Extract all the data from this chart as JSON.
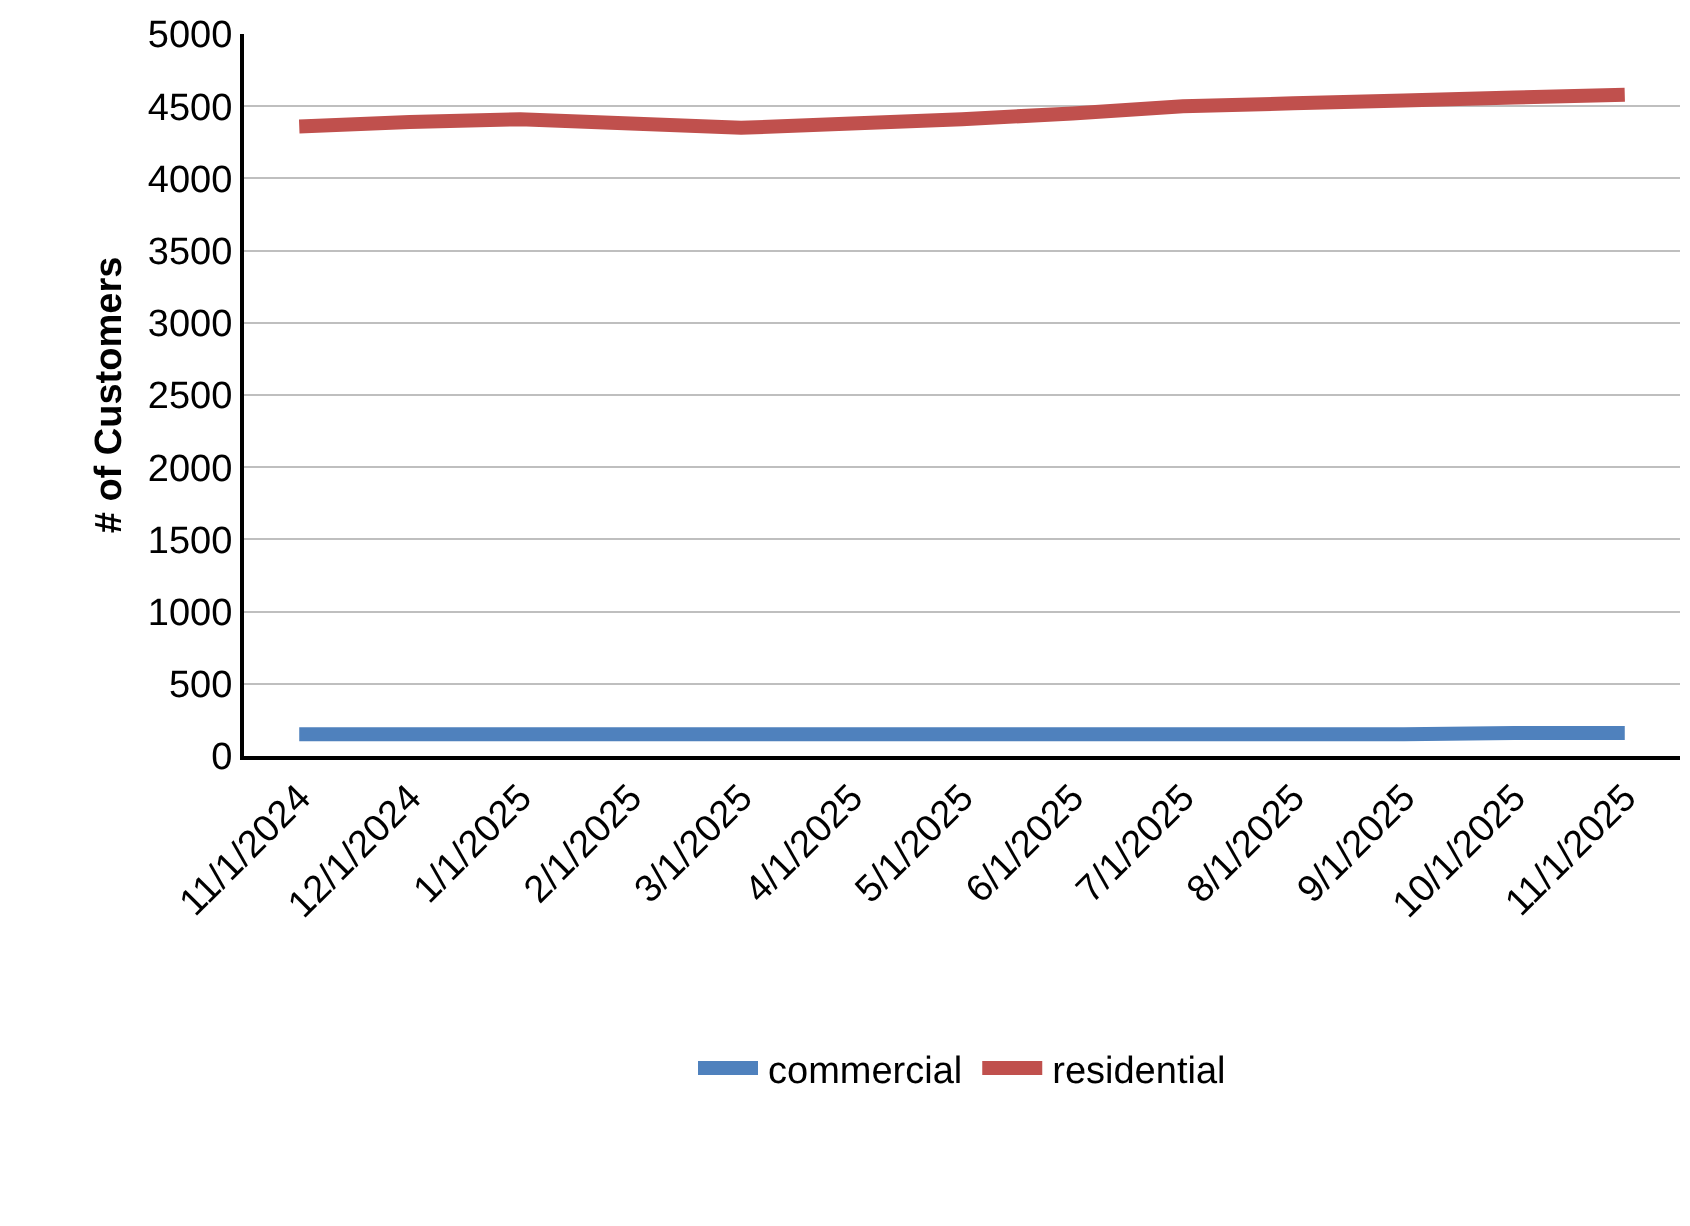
{
  "chart_data": {
    "type": "line",
    "ylabel": "# of Customers",
    "categories": [
      "11/1/2024",
      "12/1/2024",
      "1/1/2025",
      "2/1/2025",
      "3/1/2025",
      "4/1/2025",
      "5/1/2025",
      "6/1/2025",
      "7/1/2025",
      "8/1/2025",
      "9/1/2025",
      "10/1/2025",
      "11/1/2025"
    ],
    "series": [
      {
        "name": "commercial",
        "color": "#4f81bd",
        "values": [
          150,
          150,
          150,
          150,
          150,
          150,
          150,
          150,
          150,
          150,
          150,
          160,
          160
        ]
      },
      {
        "name": "residential",
        "color": "#c0504d",
        "values": [
          4360,
          4390,
          4410,
          4380,
          4350,
          4380,
          4410,
          4450,
          4500,
          4520,
          4540,
          4560,
          4580
        ]
      }
    ],
    "ylim": [
      0,
      5000
    ],
    "yticks": [
      0,
      500,
      1000,
      1500,
      2000,
      2500,
      3000,
      3500,
      4000,
      4500,
      5000
    ],
    "grid": "y",
    "legend": "bottom",
    "marker": "none",
    "line_style": "solid"
  }
}
